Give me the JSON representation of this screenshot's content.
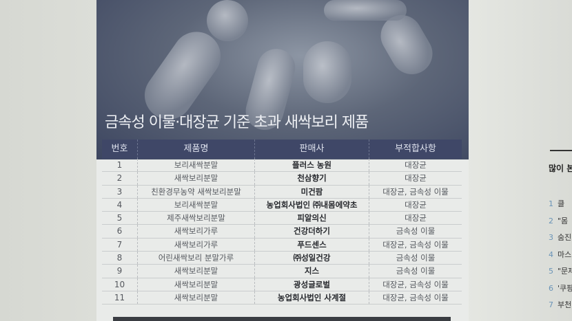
{
  "infographic": {
    "title": "금속성 이물·대장균 기준 초과 새싹보리 제품",
    "headers": [
      "번호",
      "제품명",
      "판매사",
      "부적합사항"
    ],
    "rows": [
      [
        "1",
        "보리새싹분말",
        "플러스 농원",
        "대장균"
      ],
      [
        "2",
        "새싹보리분말",
        "천삼향기",
        "대장균"
      ],
      [
        "3",
        "친환경무농약 새싹보리분말",
        "미건팜",
        "대장균, 금속성 이물"
      ],
      [
        "4",
        "보리새싹분말",
        "농업회사법인 ㈜내몸에약초",
        "대장균"
      ],
      [
        "5",
        "제주새싹보리분말",
        "피알의신",
        "대장균"
      ],
      [
        "6",
        "새싹보리가루",
        "건강더하기",
        "금속성 이물"
      ],
      [
        "7",
        "새싹보리가루",
        "푸드센스",
        "대장균, 금속성 이물"
      ],
      [
        "8",
        "어린새싹보리 분말가루",
        "㈜성일건강",
        "금속성 이물"
      ],
      [
        "9",
        "새싹보리분말",
        "지스",
        "금속성 이물"
      ],
      [
        "10",
        "새싹보리분말",
        "광성글로벌",
        "대장균, 금속성 이물"
      ],
      [
        "11",
        "새싹보리분말",
        "농업회사법인 사계절",
        "대장균, 금속성 이물"
      ]
    ]
  },
  "sidebar": {
    "heading": "많이 본",
    "items": [
      {
        "num": "1",
        "text": "클"
      },
      {
        "num": "2",
        "text": "\"몸"
      },
      {
        "num": "3",
        "text": "숨진"
      },
      {
        "num": "4",
        "text": "마스"
      },
      {
        "num": "5",
        "text": "\"문제"
      },
      {
        "num": "6",
        "text": "'쿠팡"
      },
      {
        "num": "7",
        "text": "부천"
      }
    ]
  }
}
